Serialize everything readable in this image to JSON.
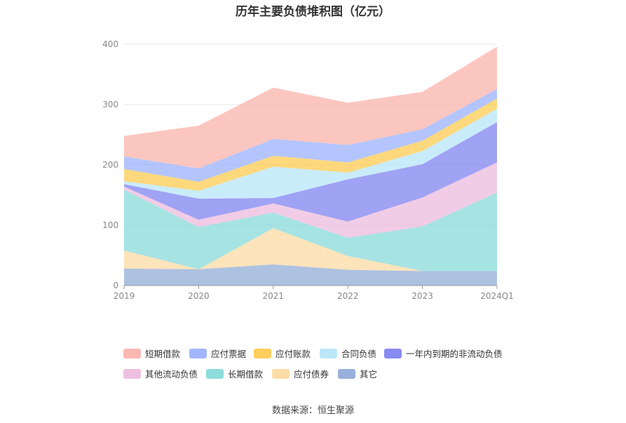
{
  "title": "历年主要负债堆积图（亿元）",
  "source": "数据来源：恒生聚源",
  "chart_data": {
    "type": "area",
    "stacked": true,
    "categories": [
      "2019",
      "2020",
      "2021",
      "2022",
      "2023",
      "2024Q1"
    ],
    "ylim": [
      0,
      400
    ],
    "yticks": [
      "0",
      "100",
      "200",
      "300",
      "400"
    ],
    "grid": true,
    "legend_position": "bottom",
    "series": [
      {
        "name": "其它",
        "color": "#8ea9d6",
        "values": [
          28,
          27,
          35,
          26,
          24,
          24
        ]
      },
      {
        "name": "应付债券",
        "color": "#fcd9a0",
        "values": [
          30,
          0,
          60,
          23,
          0,
          0
        ]
      },
      {
        "name": "长期借款",
        "color": "#83d8d8",
        "values": [
          101,
          70,
          26,
          30,
          74,
          130
        ]
      },
      {
        "name": "其他流动负债",
        "color": "#ebb9dd",
        "values": [
          5,
          12,
          15,
          27,
          48,
          50
        ]
      },
      {
        "name": "一年内到期的非流动负债",
        "color": "#7b7ef0",
        "values": [
          4,
          35,
          9,
          70,
          55,
          67
        ]
      },
      {
        "name": "合同负债",
        "color": "#b4e4f8",
        "values": [
          5,
          13,
          52,
          11,
          22,
          22
        ]
      },
      {
        "name": "应付账款",
        "color": "#fdc94a",
        "values": [
          20,
          15,
          18,
          17,
          17,
          17
        ]
      },
      {
        "name": "应付票据",
        "color": "#97aefc",
        "values": [
          21,
          22,
          28,
          29,
          19,
          16
        ]
      },
      {
        "name": "短期借款",
        "color": "#fbb0a8",
        "values": [
          34,
          71,
          85,
          70,
          62,
          70
        ]
      }
    ],
    "legend_order": [
      "短期借款",
      "应付票据",
      "应付账款",
      "合同负债",
      "一年内到期的非流动负债",
      "其他流动负债",
      "长期借款",
      "应付债券",
      "其它"
    ]
  }
}
